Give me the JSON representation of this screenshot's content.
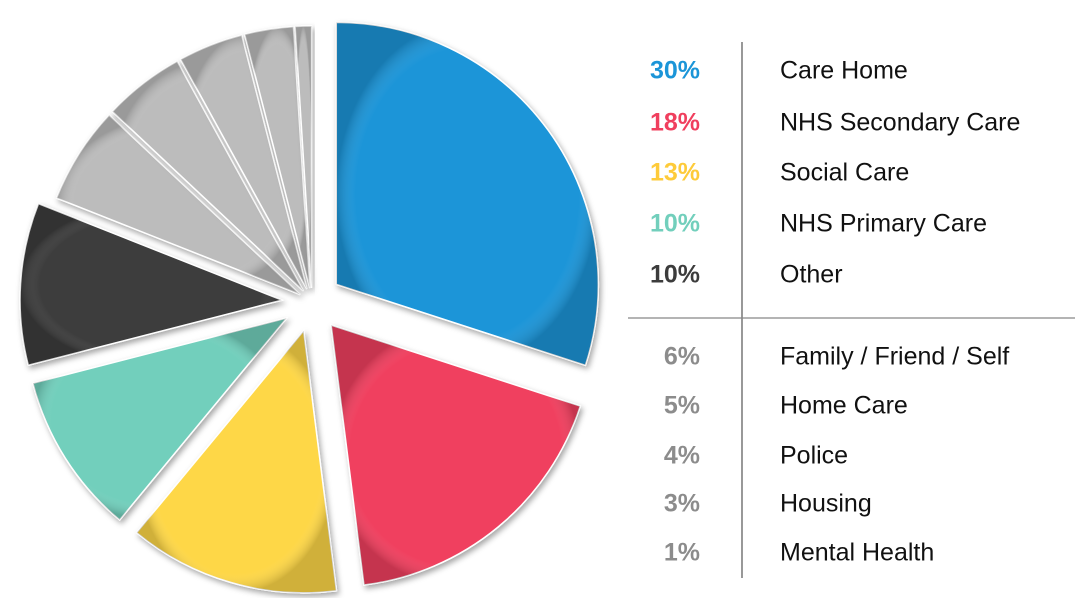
{
  "chart_data": {
    "type": "pie",
    "categories": [
      "Care Home",
      "NHS Secondary Care",
      "Social Care",
      "NHS Primary Care",
      "Other",
      "Family / Friend / Self",
      "Home Care",
      "Police",
      "Housing",
      "Mental Health"
    ],
    "values": [
      30,
      18,
      13,
      10,
      10,
      6,
      5,
      4,
      3,
      1
    ],
    "value_labels": [
      "30%",
      "18%",
      "13%",
      "10%",
      "10%",
      "6%",
      "5%",
      "4%",
      "3%",
      "1%"
    ],
    "colors": [
      "#1b95d8",
      "#f03f5e",
      "#fed746",
      "#72cfbc",
      "#3c3c3c",
      "#bcbcbc",
      "#bcbcbc",
      "#bcbcbc",
      "#bcbcbc",
      "#bcbcbc"
    ],
    "label_colors": [
      "#1b95d8",
      "#f03f5e",
      "#fecb3a",
      "#72cfbc",
      "#3c3c3c",
      "#8c8c8c",
      "#8c8c8c",
      "#8c8c8c",
      "#8c8c8c",
      "#8c8c8c"
    ]
  }
}
